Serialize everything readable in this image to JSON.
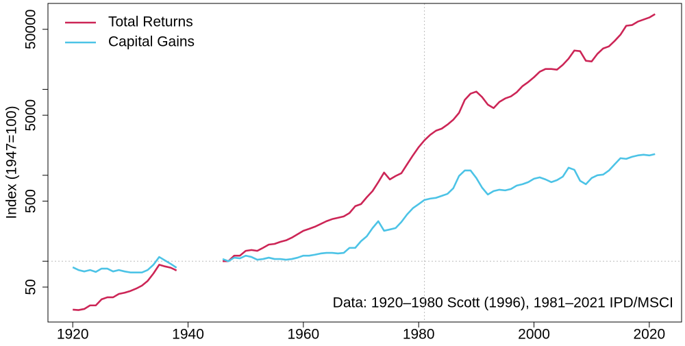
{
  "chart_data": {
    "type": "line",
    "ylabel": "Index (1947=100)",
    "annotation": "Data: 1920–1980 Scott (1996), 1981–2021 IPD/MSCI",
    "log_y": true,
    "legend": "top-left",
    "xlim": [
      1915.7,
      2025.6
    ],
    "xticks": [
      1920,
      1940,
      1960,
      1980,
      2000,
      2020
    ],
    "ylim": [
      19.6,
      100000
    ],
    "yticks": [
      50,
      500,
      5000,
      50000
    ],
    "yminorticks": [
      100,
      1000,
      10000
    ],
    "hline": 100,
    "vline": 1981,
    "x": [
      1920,
      1921,
      1922,
      1923,
      1924,
      1925,
      1926,
      1927,
      1928,
      1929,
      1930,
      1931,
      1932,
      1933,
      1934,
      1935,
      1936,
      1937,
      1938,
      1939,
      1946,
      1947,
      1948,
      1949,
      1950,
      1951,
      1952,
      1953,
      1954,
      1955,
      1956,
      1957,
      1958,
      1959,
      1960,
      1961,
      1962,
      1963,
      1964,
      1965,
      1966,
      1967,
      1968,
      1969,
      1970,
      1971,
      1972,
      1973,
      1974,
      1975,
      1976,
      1977,
      1978,
      1979,
      1980,
      1981,
      1982,
      1983,
      1984,
      1985,
      1986,
      1987,
      1988,
      1989,
      1990,
      1991,
      1992,
      1993,
      1994,
      1995,
      1996,
      1997,
      1998,
      1999,
      2000,
      2001,
      2002,
      2003,
      2004,
      2005,
      2006,
      2007,
      2008,
      2009,
      2010,
      2011,
      2012,
      2013,
      2014,
      2015,
      2016,
      2017,
      2018,
      2019,
      2020,
      2021
    ],
    "series": [
      {
        "name": "Total Returns",
        "color": "#cc2556",
        "values": [
          27.3,
          27,
          27.8,
          30.6,
          30.6,
          36,
          38,
          38,
          41.6,
          43,
          45,
          48,
          52,
          59,
          72,
          91,
          87,
          84,
          78,
          null,
          100,
          100,
          116,
          116,
          132,
          135,
          132,
          143,
          156,
          159,
          168,
          175,
          188,
          206,
          226,
          238,
          252,
          271,
          292,
          309,
          320,
          332,
          364,
          437,
          462,
          555,
          655,
          832,
          1076,
          895,
          981,
          1057,
          1343,
          1703,
          2124,
          2553,
          2958,
          3303,
          3490,
          3890,
          4427,
          5324,
          7550,
          8913,
          9420,
          8128,
          6637,
          6053,
          7145,
          7834,
          8279,
          9247,
          10890,
          12160,
          13830,
          16030,
          17260,
          17260,
          16950,
          19280,
          22750,
          28310,
          27800,
          21530,
          21130,
          25880,
          29920,
          31620,
          36640,
          43250,
          54950,
          55990,
          61380,
          64860,
          68550,
          75000
        ]
      },
      {
        "name": "Capital Gains",
        "color": "#4cc3e6",
        "values": [
          85,
          79,
          76,
          79,
          75,
          82,
          82,
          76,
          79,
          76,
          74,
          74,
          74,
          79,
          91,
          112,
          102,
          93,
          84,
          null,
          106,
          100,
          110,
          108,
          116,
          112,
          104,
          106,
          110,
          106,
          106,
          104,
          106,
          110,
          116,
          116,
          119,
          123,
          125,
          125,
          123,
          125,
          143,
          143,
          171,
          195,
          243,
          292,
          226,
          234,
          243,
          286,
          351,
          414,
          462,
          516,
          535,
          546,
          576,
          608,
          705,
          981,
          1137,
          1137,
          929,
          718,
          597,
          655,
          679,
          667,
          692,
          759,
          787,
          832,
          912,
          946,
          895,
          832,
          879,
          964,
          1225,
          1159,
          863,
          787,
          929,
          1000,
          1019,
          1137,
          1343,
          1581,
          1552,
          1641,
          1703,
          1734,
          1703,
          1766
        ]
      }
    ]
  }
}
